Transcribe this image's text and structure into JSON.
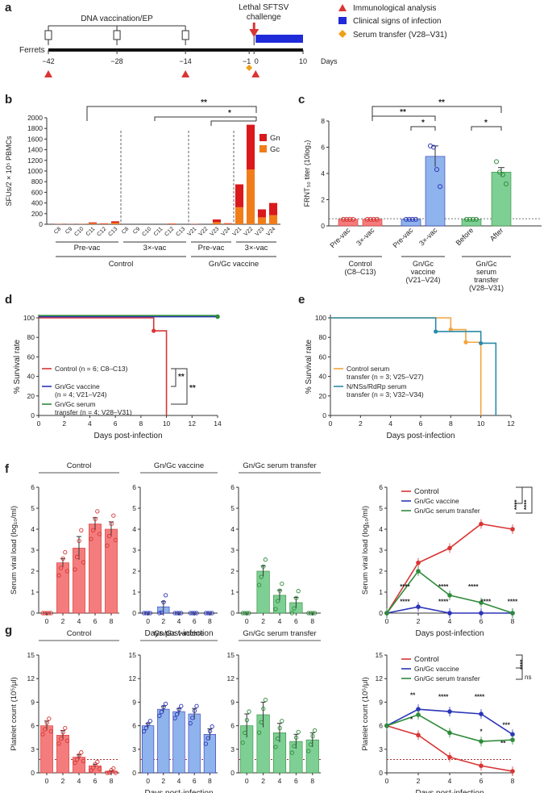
{
  "panel_labels": {
    "a": "a",
    "b": "b",
    "c": "c",
    "d": "d",
    "e": "e",
    "f": "f",
    "g": "g"
  },
  "colors": {
    "control": "#d93535",
    "control_fill": "#f47c7c",
    "vaccine": "#2b35b8",
    "vaccine_fill": "#8fb3ec",
    "serum": "#2e8b3a",
    "serum_fill": "#7ecf94",
    "gn": "#d9191c",
    "gc": "#f07d1a",
    "orange_line": "#f4a340",
    "teal_line": "#2a8aa8",
    "legend_blue": "#1f2bd9",
    "diamond": "#f0a018"
  },
  "timeline": {
    "header": "DNA vaccination/EP",
    "challenge": "Lethal SFTSV challenge",
    "subject": "Ferrets",
    "days_label": "Days",
    "ticks": [
      "−42",
      "−28",
      "−14",
      "−1",
      "0",
      "10"
    ],
    "legend": [
      "Immunological analysis",
      "Clinical signs of infection",
      "Serum transfer (V28–V31)"
    ]
  },
  "chart_data": [
    {
      "id": "b",
      "type": "bar",
      "stacked": true,
      "ylabel": "SFUs/2 × 10⁵ PBMCs",
      "ylim": [
        0,
        2000
      ],
      "yticks": [
        0,
        200,
        400,
        600,
        800,
        1000,
        1200,
        1400,
        1600,
        1800,
        2000
      ],
      "categories": [
        "C8",
        "C9",
        "C10",
        "C11",
        "C12",
        "C13",
        "C8",
        "C9",
        "C10",
        "C11",
        "C12",
        "C13",
        "V21",
        "V22",
        "V23",
        "V24",
        "V21",
        "V22",
        "V23",
        "V24"
      ],
      "series": [
        {
          "name": "Gc",
          "values": [
            5,
            3,
            5,
            20,
            10,
            30,
            0,
            0,
            0,
            0,
            8,
            0,
            5,
            0,
            40,
            10,
            320,
            1030,
            130,
            170
          ]
        },
        {
          "name": "Gn",
          "values": [
            3,
            2,
            3,
            15,
            8,
            25,
            0,
            0,
            0,
            0,
            6,
            0,
            3,
            0,
            50,
            10,
            430,
            840,
            150,
            230
          ]
        }
      ],
      "group_labels": [
        "Pre-vac",
        "3×-vac",
        "Pre-vac",
        "3×-vac"
      ],
      "super_groups": [
        "Control",
        "Gn/Gc vaccine"
      ],
      "sig": [
        "**",
        "*"
      ]
    },
    {
      "id": "c",
      "type": "bar",
      "ylabel": "FRNT₅₀ titer (10log₂)",
      "ylim": [
        0,
        8
      ],
      "yticks": [
        0,
        2,
        4,
        6,
        8
      ],
      "categories": [
        "Pre-vac",
        "3×-vac",
        "Pre-vac",
        "3×-vac",
        "Before",
        "After"
      ],
      "values": [
        0.5,
        0.5,
        0.5,
        5.3,
        0.5,
        4.1
      ],
      "errors": [
        0,
        0,
        0,
        0.8,
        0,
        0.35
      ],
      "groups": [
        "Control (C8–C13)",
        "Gn/Gc vaccine (V21–V24)",
        "Gn/Gc serum transfer (V28–V31)"
      ],
      "group_lines": [
        [
          "Control",
          "(C8–C13)"
        ],
        [
          "Gn/Gc",
          "vaccine",
          "(V21–V24)"
        ],
        [
          "Gn/Gc",
          "serum",
          "transfer",
          "(V28–V31)"
        ]
      ],
      "sig": [
        "**",
        "**",
        "*",
        "*"
      ]
    },
    {
      "id": "d",
      "type": "line",
      "step": true,
      "xlabel": "Days post-infection",
      "ylabel": "% Survival rate",
      "xlim": [
        0,
        14
      ],
      "ylim": [
        0,
        100
      ],
      "xticks": [
        0,
        2,
        4,
        6,
        8,
        10,
        12,
        14
      ],
      "yticks": [
        0,
        20,
        40,
        60,
        80,
        100
      ],
      "series": [
        {
          "name": "Control (n = 6; C8–C13)",
          "x": [
            0,
            9,
            9,
            10,
            10
          ],
          "y": [
            100,
            100,
            86.7,
            86.7,
            0
          ]
        },
        {
          "name": "Gn/Gc vaccine (n = 4; V21–V24)",
          "x": [
            0,
            14
          ],
          "y": [
            100,
            100
          ]
        },
        {
          "name": "Gn/Gc serum transfer (n = 4; V28–V31)",
          "x": [
            0,
            14
          ],
          "y": [
            100,
            100
          ]
        }
      ],
      "legend_lines": [
        [
          "Control (n = 6; C8–C13)"
        ],
        [
          "Gn/Gc vaccine",
          "(n = 4; V21–V24)"
        ],
        [
          "Gn/Gc serum",
          "transfer (n = 4; V28–V31)"
        ]
      ],
      "sig": [
        "**",
        "**"
      ]
    },
    {
      "id": "e",
      "type": "line",
      "step": true,
      "xlabel": "Days post-infection",
      "ylabel": "% Survival rate",
      "xlim": [
        0,
        12
      ],
      "ylim": [
        0,
        100
      ],
      "xticks": [
        0,
        2,
        4,
        6,
        8,
        10,
        12
      ],
      "yticks": [
        0,
        20,
        40,
        60,
        80,
        100
      ],
      "series": [
        {
          "name": "Control serum transfer (n = 3; V25–V27)",
          "x": [
            0,
            8,
            8,
            9,
            9,
            10,
            10
          ],
          "y": [
            100,
            100,
            88,
            88,
            75,
            75,
            0
          ]
        },
        {
          "name": "N/NSs/RdRp serum transfer (n = 3; V32–V34)",
          "x": [
            0,
            7,
            7,
            10,
            10,
            11,
            11
          ],
          "y": [
            100,
            100,
            86,
            86,
            74,
            74,
            0
          ]
        }
      ],
      "legend_lines": [
        [
          "Control serum",
          "transfer (n = 3; V25–V27)"
        ],
        [
          "N/NSs/RdRp serum",
          "transfer (n = 3; V32–V34)"
        ]
      ]
    },
    {
      "id": "f",
      "type": "bar",
      "ylabel": "Serum viral load (log₁₀/ml)",
      "xlabel": "Days post-infection",
      "ylim": [
        0,
        6
      ],
      "yticks": [
        0,
        1,
        2,
        3,
        4,
        5,
        6
      ],
      "categories": [
        0,
        2,
        4,
        6,
        8
      ],
      "series": [
        {
          "name": "Control",
          "values": [
            0,
            2.4,
            3.1,
            4.25,
            4.0
          ],
          "errors": [
            0,
            0.2,
            0.55,
            0.3,
            0.35
          ]
        },
        {
          "name": "Gn/Gc vaccine",
          "values": [
            0,
            0.3,
            0,
            0,
            0
          ],
          "errors": [
            0,
            0.25,
            0,
            0,
            0
          ]
        },
        {
          "name": "Gn/Gc serum transfer",
          "values": [
            0,
            2.0,
            0.85,
            0.5,
            0
          ],
          "errors": [
            0,
            0.25,
            0.25,
            0.25,
            0
          ]
        }
      ],
      "titles": [
        "Control",
        "Gn/Gc vaccine",
        "Gn/Gc serum transfer"
      ]
    },
    {
      "id": "f_line",
      "type": "line",
      "ylabel": "Serum viral load (log₁₀/ml)",
      "xlabel": "Days post-infection",
      "xlim": [
        0,
        8
      ],
      "ylim": [
        0,
        6
      ],
      "xticks": [
        0,
        2,
        4,
        6,
        8
      ],
      "yticks": [
        0,
        1,
        2,
        3,
        4,
        5,
        6
      ],
      "series": [
        {
          "name": "Control",
          "x": [
            0,
            2,
            4,
            6,
            8
          ],
          "y": [
            0,
            2.4,
            3.1,
            4.25,
            4.0
          ]
        },
        {
          "name": "Gn/Gc vaccine",
          "x": [
            0,
            2,
            4,
            6,
            8
          ],
          "y": [
            0,
            0.3,
            0,
            0,
            0
          ]
        },
        {
          "name": "Gn/Gc serum transfer",
          "x": [
            0,
            2,
            4,
            6,
            8
          ],
          "y": [
            0,
            2.0,
            0.85,
            0.5,
            0
          ]
        }
      ],
      "annotations": [
        "****",
        "****",
        "****",
        "****",
        "****",
        "****",
        "****",
        "****",
        "****"
      ]
    },
    {
      "id": "g",
      "type": "bar",
      "ylabel": "Platelet count (10⁵/μl)",
      "xlabel": "Days post-infection",
      "ylim": [
        0,
        15
      ],
      "yticks": [
        0,
        3,
        6,
        9,
        12,
        15
      ],
      "categories": [
        0,
        2,
        4,
        6,
        8
      ],
      "series": [
        {
          "name": "Control",
          "values": [
            6.0,
            4.8,
            2.0,
            0.9,
            0.2
          ],
          "errors": [
            0.6,
            0.6,
            0.3,
            0.2,
            0.05
          ]
        },
        {
          "name": "Gn/Gc vaccine",
          "values": [
            6.0,
            8.1,
            7.8,
            7.5,
            4.9
          ],
          "errors": [
            0.3,
            0.4,
            0.4,
            0.7,
            0.7
          ]
        },
        {
          "name": "Gn/Gc serum transfer",
          "values": [
            6.0,
            7.4,
            5.1,
            4.0,
            4.2
          ],
          "errors": [
            1.5,
            1.6,
            1.2,
            0.9,
            0.9
          ]
        }
      ],
      "titles": [
        "Control",
        "Gn/Gc vaccine",
        "Gn/Gc serum transfer"
      ]
    },
    {
      "id": "g_line",
      "type": "line",
      "ylabel": "Platelet count (10⁵/μl)",
      "xlabel": "Days post-infection",
      "xlim": [
        0,
        8
      ],
      "ylim": [
        0,
        15
      ],
      "xticks": [
        0,
        2,
        4,
        6,
        8
      ],
      "yticks": [
        0,
        3,
        6,
        9,
        12,
        15
      ],
      "series": [
        {
          "name": "Control",
          "x": [
            0,
            2,
            4,
            6,
            8
          ],
          "y": [
            6.0,
            4.8,
            2.0,
            0.9,
            0.2
          ]
        },
        {
          "name": "Gn/Gc vaccine",
          "x": [
            0,
            2,
            4,
            6,
            8
          ],
          "y": [
            6.0,
            8.1,
            7.8,
            7.5,
            4.9
          ]
        },
        {
          "name": "Gn/Gc serum transfer",
          "x": [
            0,
            2,
            4,
            6,
            8
          ],
          "y": [
            6.0,
            7.4,
            5.1,
            4.0,
            4.2
          ]
        }
      ],
      "annotations": [
        "****",
        "ns",
        "**",
        "*",
        "****",
        "****",
        "*",
        "***",
        "**"
      ]
    }
  ]
}
